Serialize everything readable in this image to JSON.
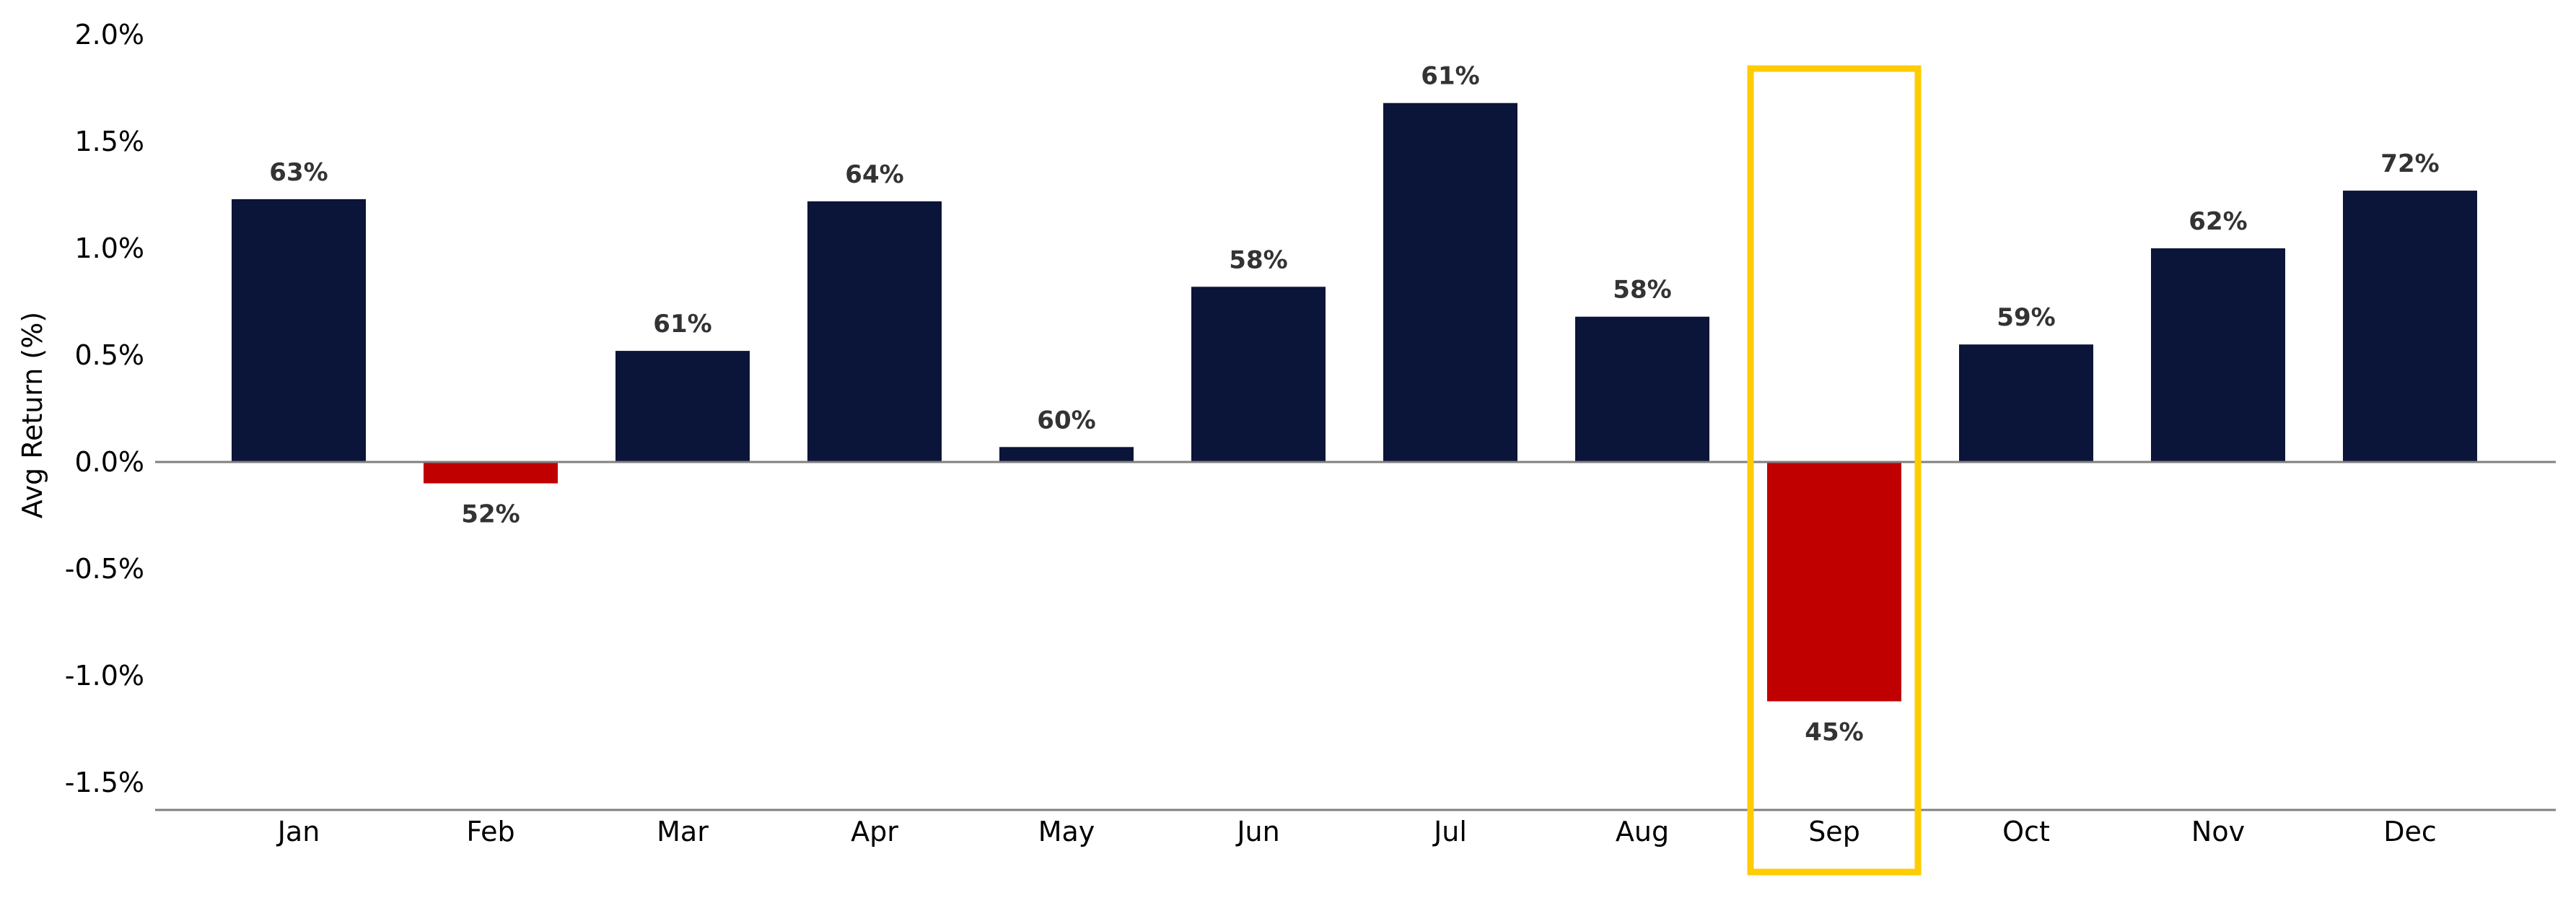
{
  "chart_data": {
    "type": "bar",
    "categories": [
      "Jan",
      "Feb",
      "Mar",
      "Apr",
      "May",
      "Jun",
      "Jul",
      "Aug",
      "Sep",
      "Oct",
      "Nov",
      "Dec"
    ],
    "values": [
      1.23,
      -0.1,
      0.52,
      1.22,
      0.07,
      0.82,
      1.68,
      0.68,
      -1.12,
      0.55,
      1.0,
      1.27
    ],
    "data_labels": [
      "63%",
      "52%",
      "61%",
      "64%",
      "60%",
      "58%",
      "61%",
      "58%",
      "45%",
      "59%",
      "62%",
      "72%"
    ],
    "ylabel": "Avg Return (%)",
    "xlabel": "",
    "ylim": [
      -1.63,
      2.0
    ],
    "yticks": [
      2.0,
      1.5,
      1.0,
      0.5,
      0.0,
      -0.5,
      -1.0,
      -1.5
    ],
    "ytick_labels": [
      "2.0%",
      "1.5%",
      "1.0%",
      "0.5%",
      "0.0%",
      "-0.5%",
      "-1.0%",
      "-1.5%"
    ],
    "highlight_category": "Sep",
    "grid": false,
    "colors": {
      "positive": "#0b1439",
      "negative": "#c00000",
      "highlight_box": "#ffcc00",
      "zero_line": "#808080",
      "baseline": "#808080",
      "data_label_text": "#333333"
    }
  }
}
